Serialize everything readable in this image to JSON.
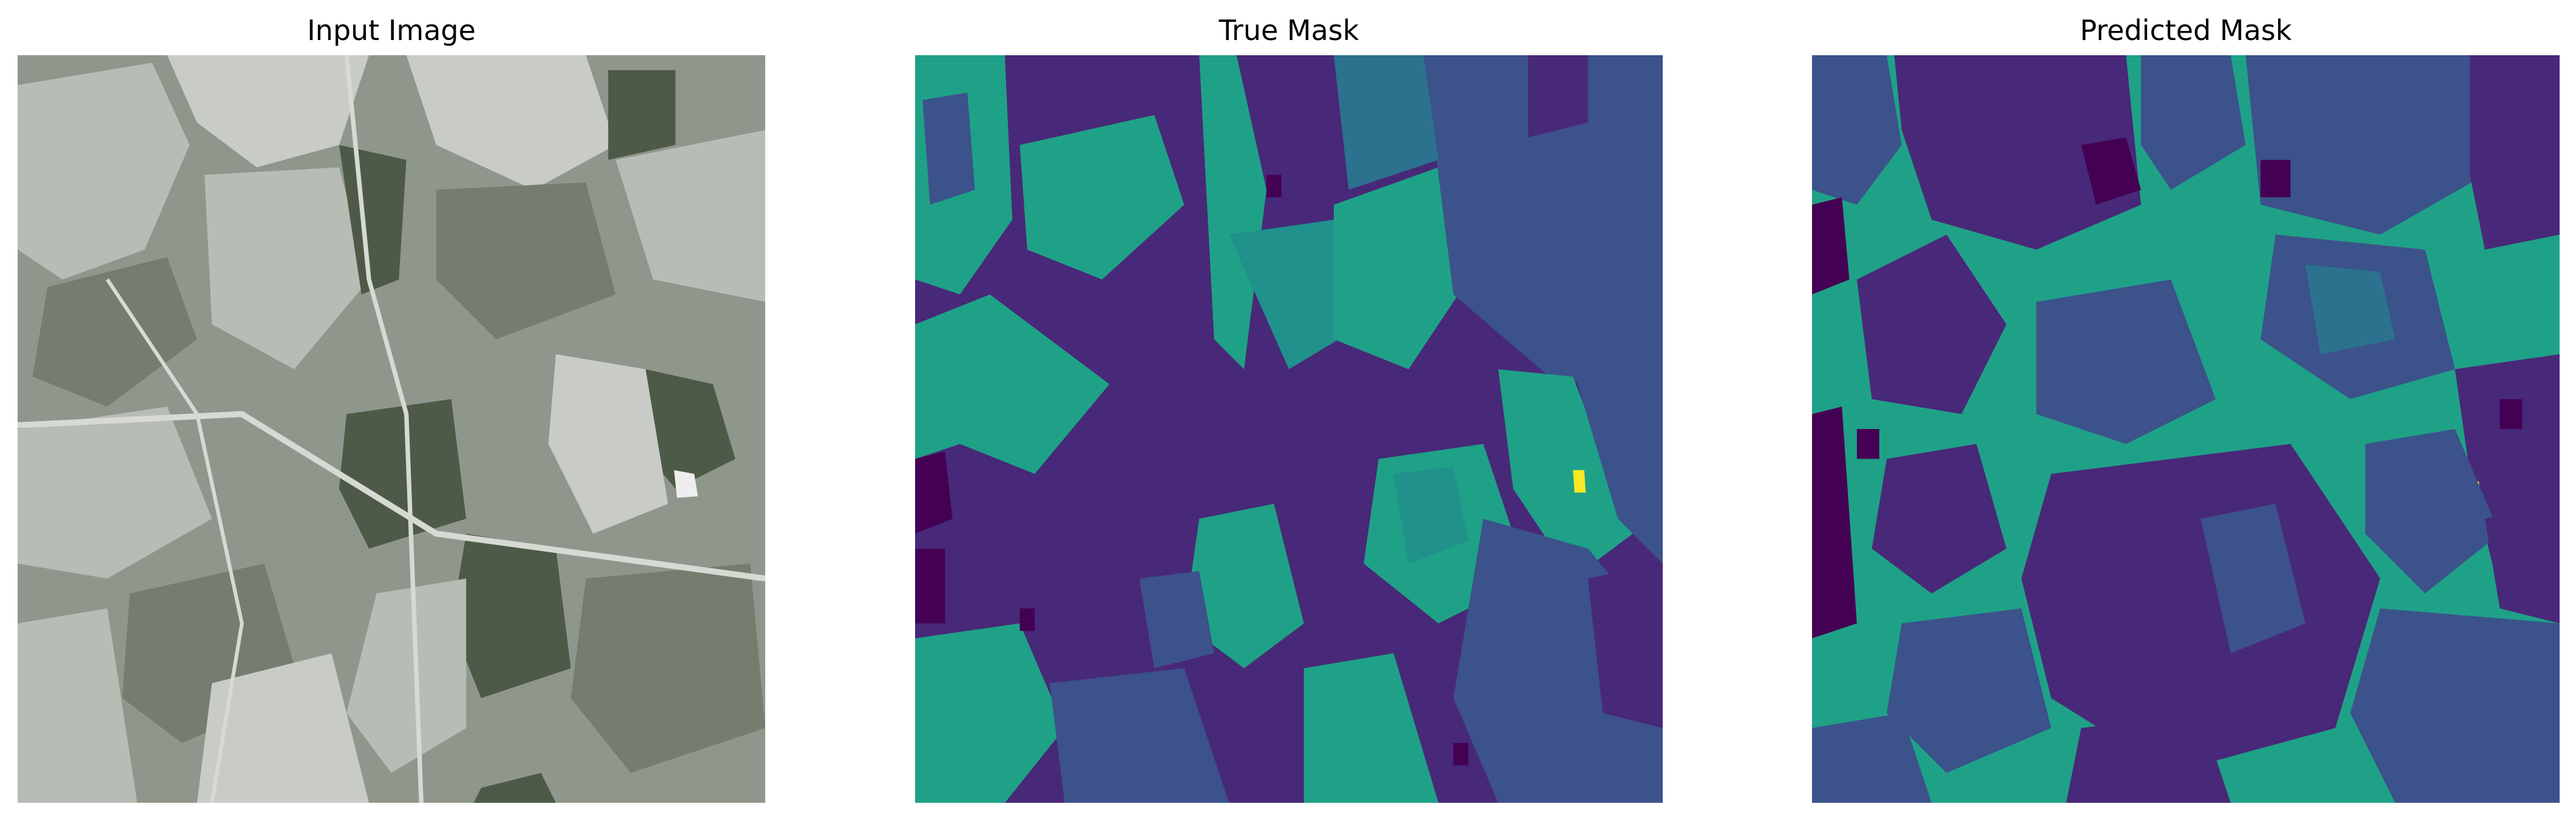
{
  "figure": {
    "panels": [
      {
        "title": "Input Image"
      },
      {
        "title": "True Mask"
      },
      {
        "title": "Predicted Mask"
      }
    ]
  },
  "colors": {
    "background": "#ffffff",
    "title_text": "#000000",
    "input_photo": {
      "base": "#8f978d",
      "light_field": "#b7bcb4",
      "pale_field": "#c9ccc6",
      "dark_field": "#4d5a47",
      "mid_field": "#747d6e",
      "road": "#d7d9d3",
      "bright_spot": "#eeeeee"
    },
    "mask_classes": {
      "class_dark": "#440154",
      "class_purple": "#482878",
      "class_blue": "#3b528b",
      "class_teal_blue": "#2c728e",
      "class_teal": "#21918c",
      "class_green": "#1fa187",
      "class_yellow": "#fde725"
    }
  }
}
